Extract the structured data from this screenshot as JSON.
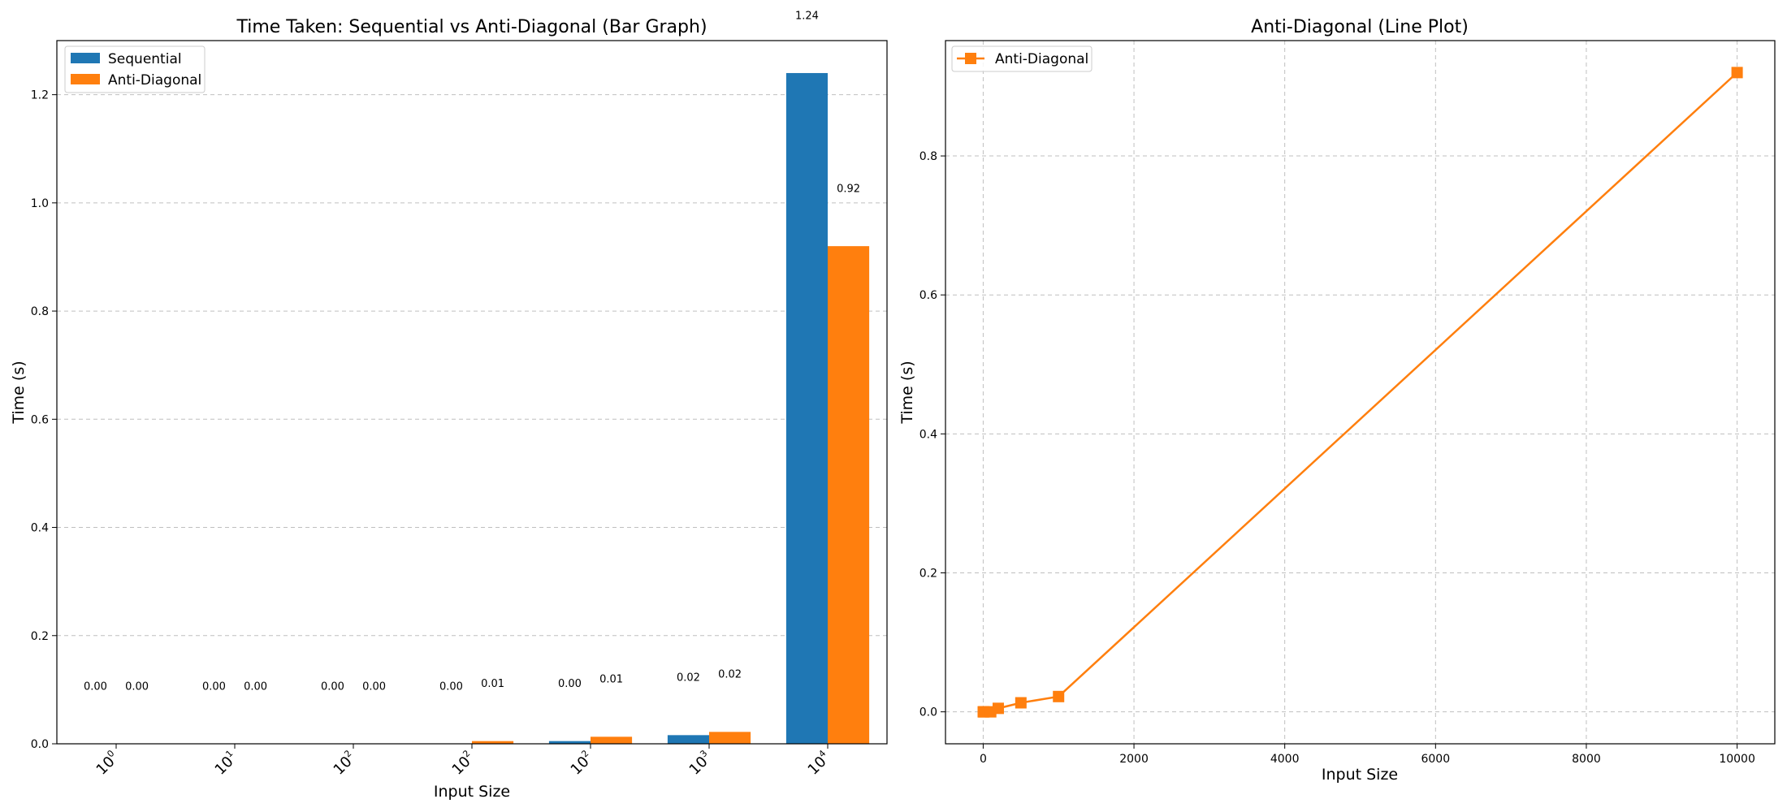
{
  "chart_data": [
    {
      "type": "bar",
      "title": "Time Taken: Sequential vs Anti-Diagonal (Bar Graph)",
      "xlabel": "Input Size",
      "ylabel": "Time (s)",
      "categories": [
        {
          "base": "10",
          "exp": "0"
        },
        {
          "base": "10",
          "exp": "1"
        },
        {
          "base": "10",
          "exp": "2"
        },
        {
          "base": "10",
          "exp": "2"
        },
        {
          "base": "10",
          "exp": "2"
        },
        {
          "base": "10",
          "exp": "3"
        },
        {
          "base": "10",
          "exp": "4"
        }
      ],
      "series": [
        {
          "name": "Sequential",
          "color": "#1f77b4",
          "values": [
            0.0,
            0.0,
            0.0,
            0.0,
            0.005,
            0.016,
            1.24
          ],
          "labels": [
            "0.00",
            "0.00",
            "0.00",
            "0.00",
            "0.00",
            "0.02",
            "1.24"
          ]
        },
        {
          "name": "Anti-Diagonal",
          "color": "#ff7f0e",
          "values": [
            0.0,
            0.0,
            0.0,
            0.005,
            0.013,
            0.022,
            0.92
          ],
          "labels": [
            "0.00",
            "0.00",
            "0.00",
            "0.01",
            "0.01",
            "0.02",
            "0.92"
          ]
        }
      ],
      "ylim": [
        0,
        1.3
      ],
      "yticks": [
        0.0,
        0.2,
        0.4,
        0.6,
        0.8,
        1.0,
        1.2
      ],
      "ytick_labels": [
        "0.0",
        "0.2",
        "0.4",
        "0.6",
        "0.8",
        "1.0",
        "1.2"
      ],
      "legend_position": "top-left",
      "grid": "y-dashed"
    },
    {
      "type": "line",
      "title": "Anti-Diagonal (Line Plot)",
      "xlabel": "Input Size",
      "ylabel": "Time (s)",
      "series": [
        {
          "name": "Anti-Diagonal",
          "color": "#ff7f0e",
          "marker": "square",
          "x": [
            1,
            10,
            100,
            200,
            500,
            1000,
            10000
          ],
          "y": [
            0.0,
            0.0,
            0.0,
            0.005,
            0.013,
            0.022,
            0.92
          ]
        }
      ],
      "xlim": [
        -500,
        10500
      ],
      "ylim": [
        -0.046,
        0.966
      ],
      "xticks": [
        0,
        2000,
        4000,
        6000,
        8000,
        10000
      ],
      "xtick_labels": [
        "0",
        "2000",
        "4000",
        "6000",
        "8000",
        "10000"
      ],
      "yticks": [
        0.0,
        0.2,
        0.4,
        0.6,
        0.8
      ],
      "ytick_labels": [
        "0.0",
        "0.2",
        "0.4",
        "0.6",
        "0.8"
      ],
      "legend_position": "top-left",
      "grid": "both-dashed"
    }
  ]
}
